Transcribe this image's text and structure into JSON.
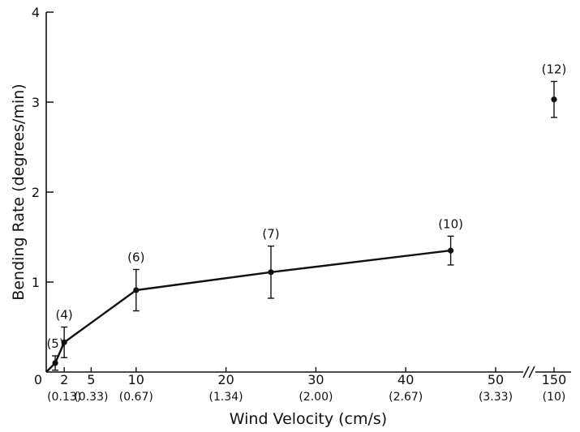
{
  "chart_data": {
    "type": "line",
    "xlabel": "Wind Velocity (cm/s)",
    "ylabel": "Bending Rate (degrees/min)",
    "ylim": [
      0,
      4
    ],
    "yticks": [
      "1",
      "2",
      "3",
      "4"
    ],
    "y_origin_label": "0",
    "xticks": [
      {
        "value": 2,
        "label": "2",
        "sub": "(0.13)"
      },
      {
        "value": 5,
        "label": "5",
        "sub": "(0.33)"
      },
      {
        "value": 10,
        "label": "10",
        "sub": "(0.67)"
      },
      {
        "value": 20,
        "label": "20",
        "sub": "(1.34)"
      },
      {
        "value": 30,
        "label": "30",
        "sub": "(2.00)"
      },
      {
        "value": 40,
        "label": "40",
        "sub": "(2.67)"
      },
      {
        "value": 50,
        "label": "50",
        "sub": "(3.33)"
      },
      {
        "value": 150,
        "label": "150",
        "sub": "(10)"
      }
    ],
    "x_axis_break": "between 50 and 150",
    "grid": false,
    "series": [
      {
        "connected": true,
        "points": [
          {
            "x": 0,
            "y": 0,
            "n": ""
          },
          {
            "x": 1,
            "y": 0.1,
            "n": "(5)",
            "err": 0.08
          },
          {
            "x": 2,
            "y": 0.33,
            "n": "(4)",
            "err": 0.17
          },
          {
            "x": 10,
            "y": 0.91,
            "n": "(6)",
            "err": 0.23
          },
          {
            "x": 25,
            "y": 1.11,
            "n": "(7)",
            "err": 0.29
          },
          {
            "x": 45,
            "y": 1.35,
            "n": "(10)",
            "err": 0.16
          }
        ]
      },
      {
        "connected": false,
        "points": [
          {
            "x": 150,
            "y": 3.03,
            "n": "(12)",
            "err": 0.2
          }
        ]
      }
    ]
  }
}
